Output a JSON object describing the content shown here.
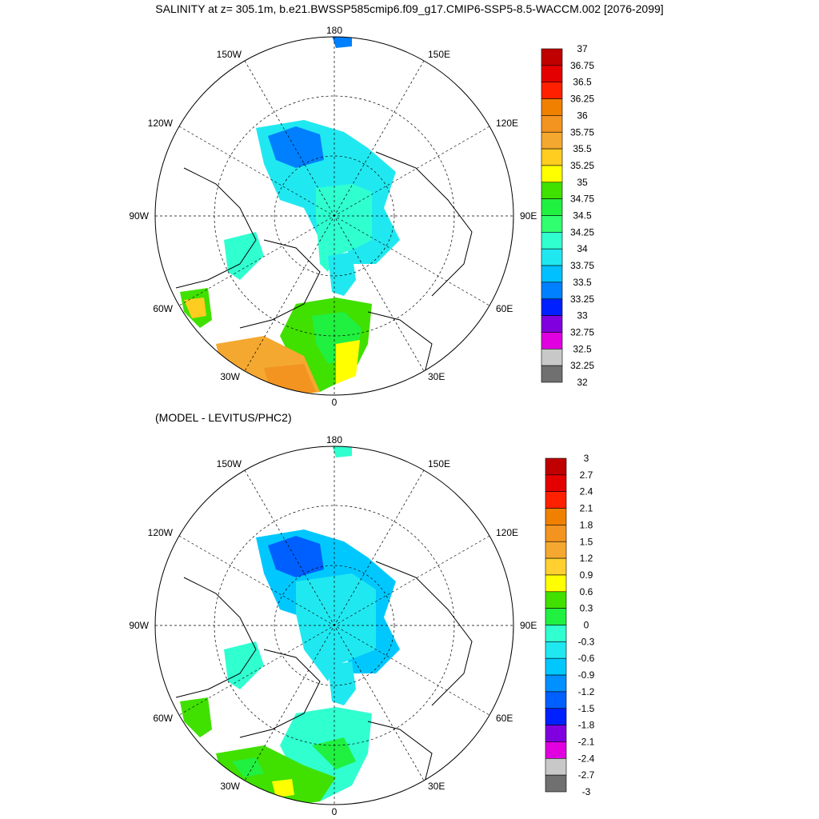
{
  "title": "SALINITY at z= 305.1m, b.e21.BWSSP585cmip6.f09_g17.CMIP6-SSP5-8.5-WACCM.002 [2076-2099]",
  "subtitle": "(MODEL - LEVITUS/PHC2)",
  "longitude_labels": [
    "180",
    "150E",
    "120E",
    "90E",
    "60E",
    "30E",
    "0",
    "30W",
    "60W",
    "90W",
    "120W",
    "150W"
  ],
  "panels": [
    {
      "name": "salinity",
      "colorbar": {
        "labels": [
          "37",
          "36.75",
          "36.5",
          "36.25",
          "36",
          "35.75",
          "35.5",
          "35.25",
          "35",
          "34.75",
          "34.5",
          "34.25",
          "34",
          "33.75",
          "33.5",
          "33.25",
          "33",
          "32.75",
          "32.5",
          "32.25",
          "32"
        ],
        "colors": [
          "#c00000",
          "#e40000",
          "#ff2000",
          "#f08000",
          "#f39320",
          "#f5a830",
          "#ffcc20",
          "#ffff00",
          "#40e000",
          "#20f040",
          "#30ff70",
          "#30ffd0",
          "#20e8f0",
          "#00c0ff",
          "#0080ff",
          "#0020ff",
          "#8000e0",
          "#e000e0",
          "#c8c8c8",
          "#707070"
        ]
      }
    },
    {
      "name": "difference",
      "colorbar": {
        "labels": [
          "3",
          "2.7",
          "2.4",
          "2.1",
          "1.8",
          "1.5",
          "1.2",
          "0.9",
          "0.6",
          "0.3",
          "0",
          "-0.3",
          "-0.6",
          "-0.9",
          "-1.2",
          "-1.5",
          "-1.8",
          "-2.1",
          "-2.4",
          "-2.7",
          "-3"
        ],
        "colors": [
          "#c00000",
          "#e40000",
          "#ff2000",
          "#f08000",
          "#f39320",
          "#f5a830",
          "#ffd030",
          "#ffff00",
          "#40e000",
          "#20f040",
          "#30ffd0",
          "#20e8f0",
          "#00c8ff",
          "#0090ff",
          "#0060ff",
          "#0020ff",
          "#8000e0",
          "#e000e0",
          "#c8c8c8",
          "#707070"
        ]
      }
    }
  ]
}
